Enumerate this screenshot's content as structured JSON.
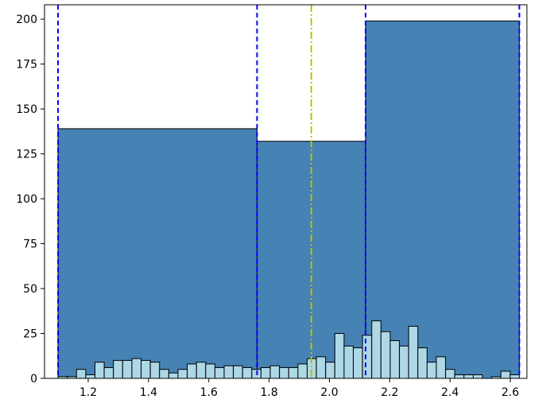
{
  "chart_data": {
    "type": "bar",
    "title": "",
    "xlabel": "",
    "ylabel": "",
    "xlim": [
      1.055,
      2.655
    ],
    "ylim": [
      0,
      208
    ],
    "grid": false,
    "x_ticks": [
      1.2,
      1.4,
      1.6,
      1.8,
      2.0,
      2.2,
      2.4,
      2.6
    ],
    "x_tick_labels": [
      "1.2",
      "1.4",
      "1.6",
      "1.8",
      "2.0",
      "2.2",
      "2.4",
      "2.6"
    ],
    "y_ticks": [
      0,
      25,
      50,
      75,
      100,
      125,
      150,
      175,
      200
    ],
    "y_tick_labels": [
      "0",
      "25",
      "50",
      "75",
      "100",
      "125",
      "150",
      "175",
      "200"
    ],
    "coarse_bins": {
      "color": "#4682b4",
      "edges": [
        1.1,
        1.76,
        2.12,
        2.63
      ],
      "counts": [
        139,
        132,
        199
      ]
    },
    "fine_bins": {
      "color": "#add8e6",
      "start": 1.1,
      "width": 0.0306,
      "counts": [
        1,
        1,
        5,
        2,
        9,
        6,
        10,
        10,
        11,
        10,
        9,
        5,
        3,
        5,
        8,
        9,
        8,
        6,
        7,
        7,
        6,
        5,
        6,
        7,
        6,
        6,
        8,
        11,
        12,
        9,
        25,
        18,
        17,
        24,
        32,
        26,
        21,
        18,
        29,
        17,
        9,
        12,
        5,
        2,
        2,
        2,
        0,
        1,
        4,
        2
      ]
    },
    "vlines": [
      {
        "x": 1.1,
        "color": "#0000ff",
        "style": "dashed"
      },
      {
        "x": 1.76,
        "color": "#0000ff",
        "style": "dashed"
      },
      {
        "x": 2.12,
        "color": "#0000ff",
        "style": "dashed"
      },
      {
        "x": 2.63,
        "color": "#0000ff",
        "style": "dashed"
      },
      {
        "x": 1.94,
        "color": "#bfbf00",
        "style": "dashdot"
      }
    ]
  }
}
